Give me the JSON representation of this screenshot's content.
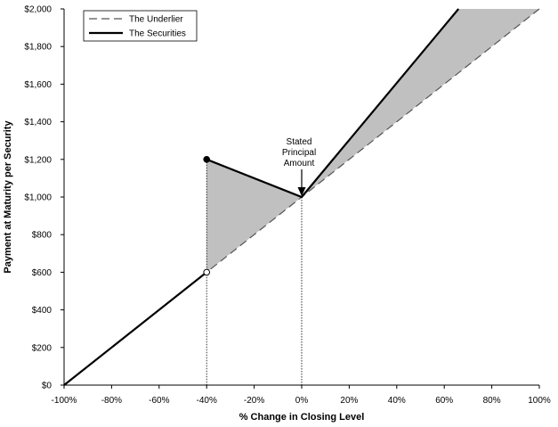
{
  "chart_data": {
    "type": "line",
    "title": "",
    "xlabel": "% Change in Closing Level",
    "ylabel": "Payment at Maturity per Security",
    "xlim": [
      -100,
      100
    ],
    "ylim": [
      0,
      2000
    ],
    "x_ticks": [
      -100,
      -80,
      -60,
      -40,
      -20,
      0,
      20,
      40,
      60,
      80,
      100
    ],
    "x_tick_labels": [
      "-100%",
      "-80%",
      "-60%",
      "-40%",
      "-20%",
      "0%",
      "20%",
      "40%",
      "60%",
      "80%",
      "100%"
    ],
    "y_ticks": [
      0,
      200,
      400,
      600,
      800,
      1000,
      1200,
      1400,
      1600,
      1800,
      2000
    ],
    "y_tick_labels": [
      "$0",
      "$200",
      "$400",
      "$600",
      "$800",
      "$1,000",
      "$1,200",
      "$1,400",
      "$1,600",
      "$1,800",
      "$2,000"
    ],
    "grid": false,
    "legend_position": "top-left",
    "series": [
      {
        "name": "The Underlier",
        "style": "dashed",
        "color": "#555555",
        "x": [
          -100,
          100
        ],
        "y": [
          0,
          2000
        ]
      },
      {
        "name": "The Securities",
        "style": "solid",
        "color": "#000000",
        "x": [
          -100,
          -40,
          -40,
          0,
          66
        ],
        "y": [
          0,
          600,
          1200,
          1000,
          2000
        ]
      }
    ],
    "markers": [
      {
        "x": -40,
        "y": 1200,
        "fill": "filled"
      },
      {
        "x": -40,
        "y": 600,
        "fill": "open"
      }
    ],
    "shaded_color": "#c0c0c0",
    "annotation": {
      "lines": [
        "Stated",
        "Principal",
        "Amount"
      ],
      "x": 0,
      "y": 1000
    },
    "reference_lines_x": [
      -40,
      0
    ]
  }
}
